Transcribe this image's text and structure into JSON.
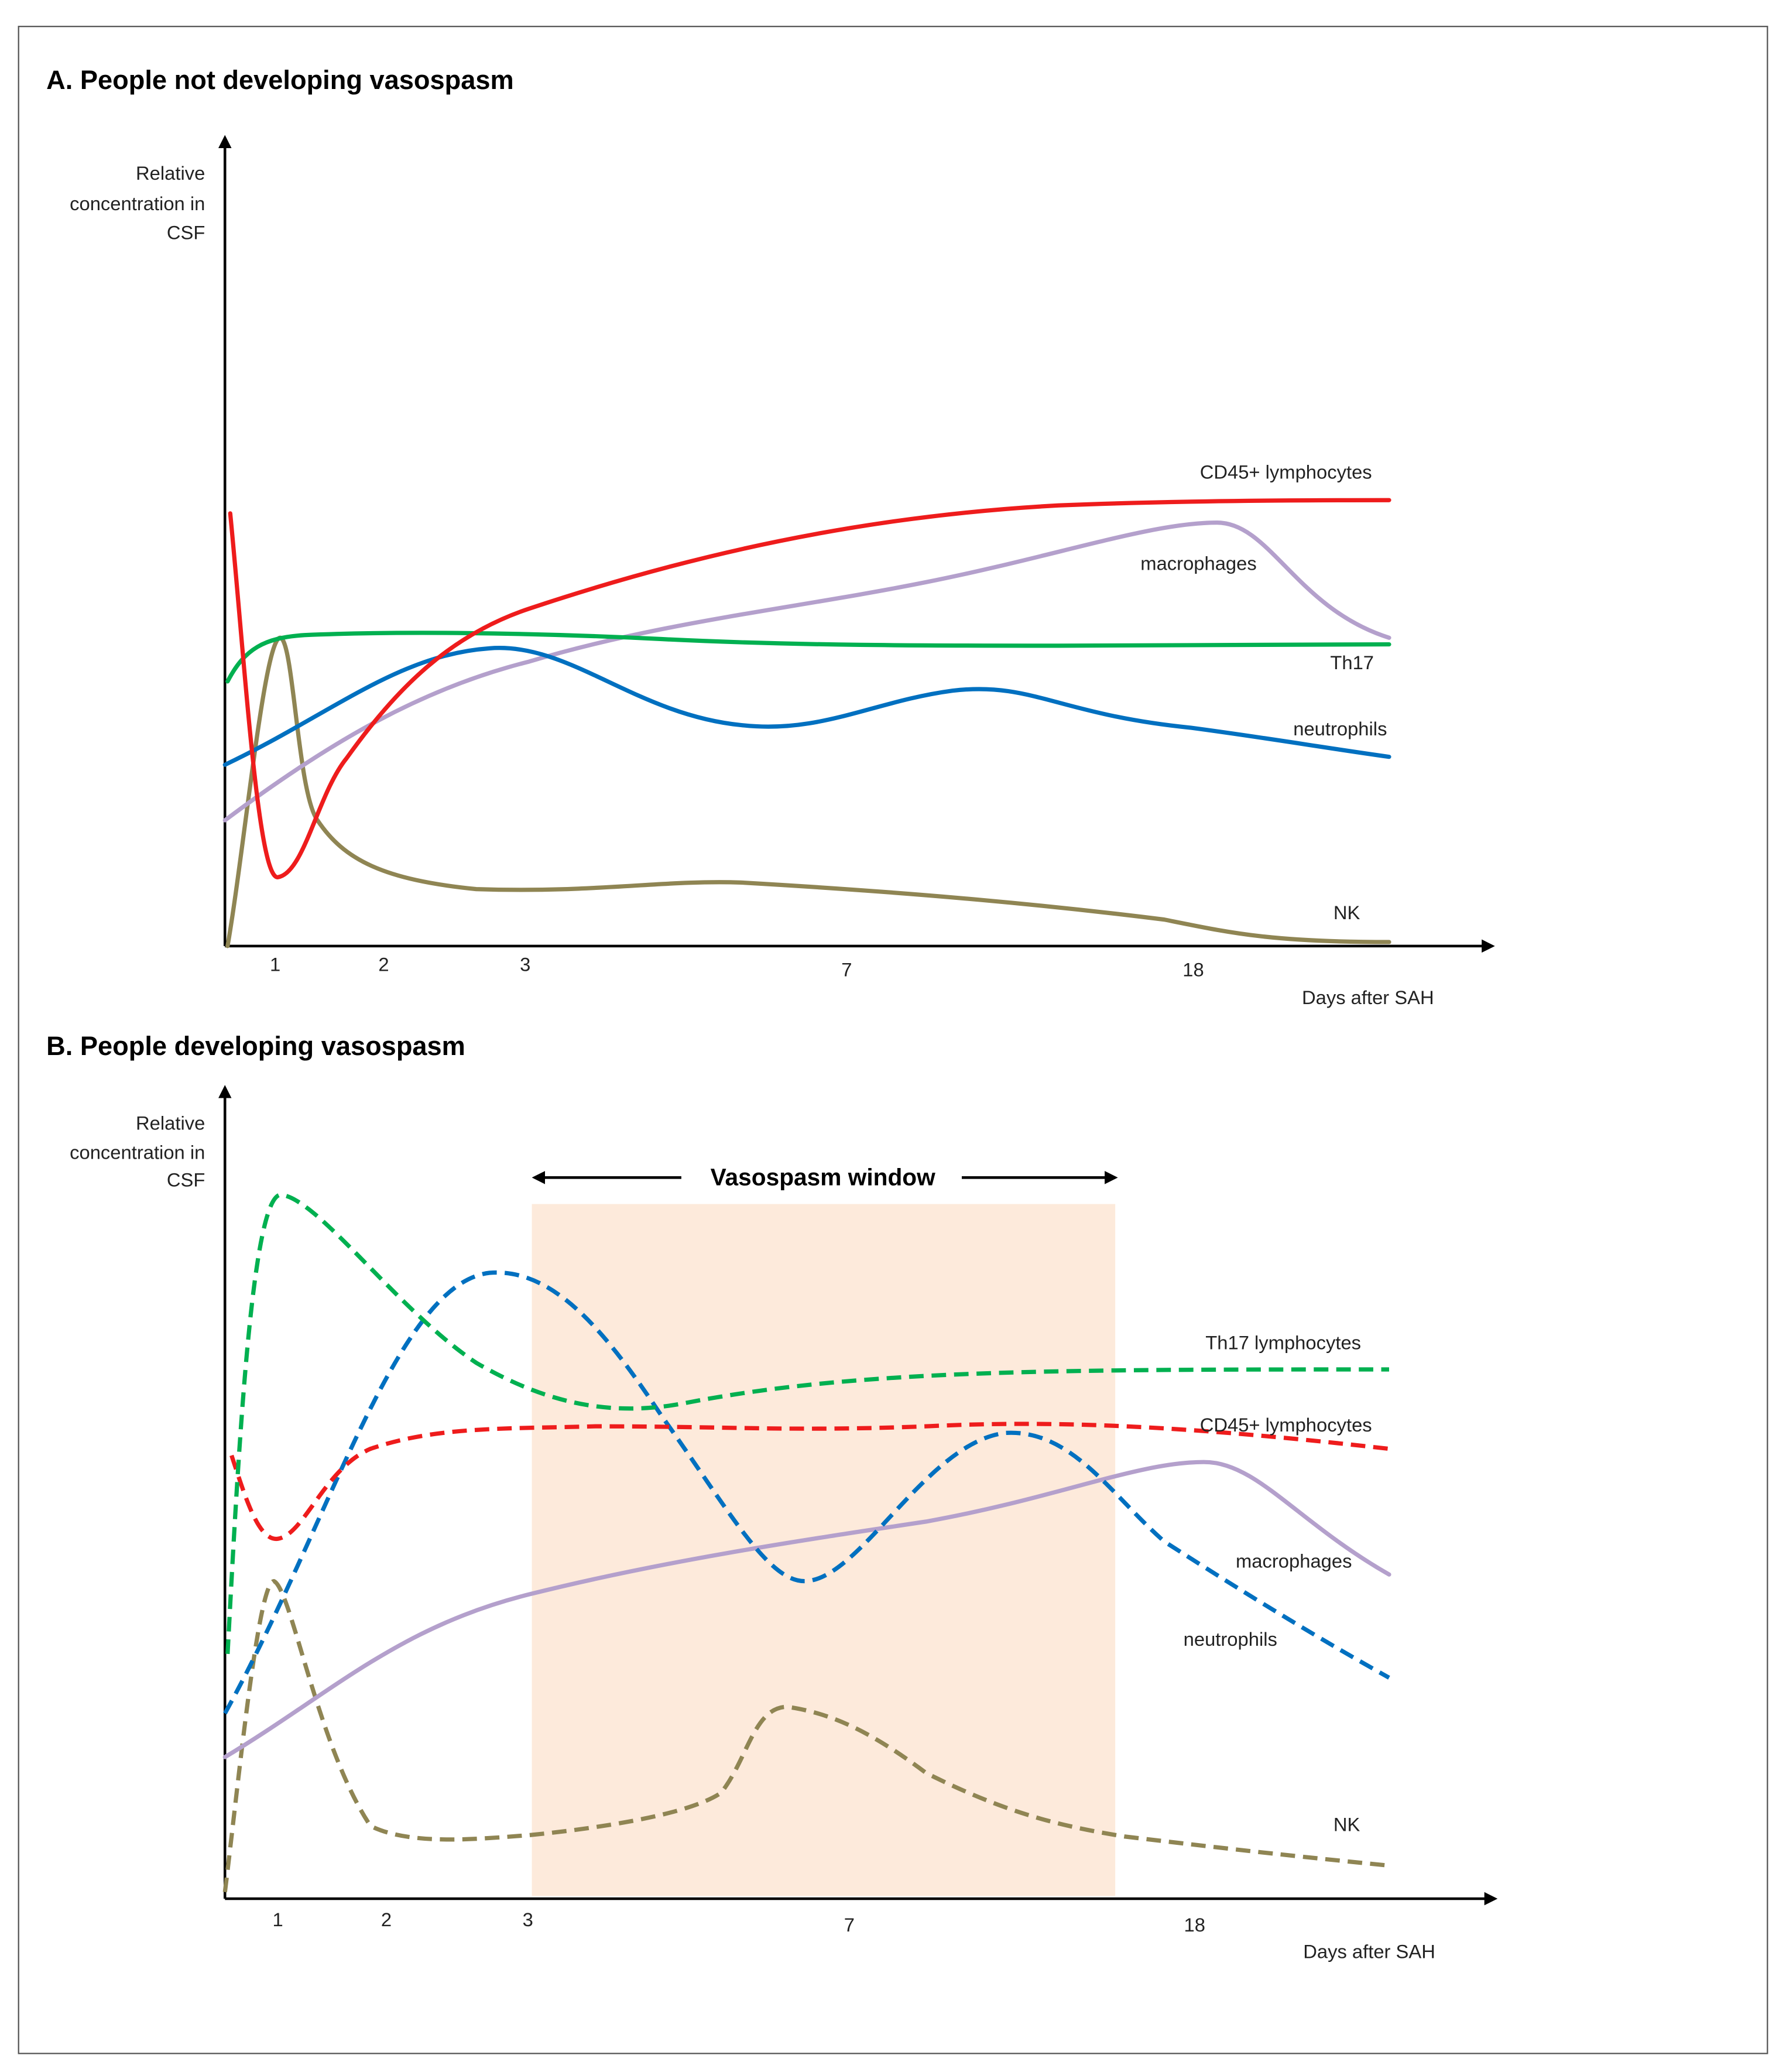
{
  "panels": [
    {
      "title": "A. People not developing vasospasm",
      "y_axis_label": [
        "Relative",
        "concentration in",
        "CSF"
      ],
      "x_axis_label": "Days after SAH",
      "x_ticks": [
        "1",
        "2",
        "3",
        "7",
        "18"
      ],
      "curve_labels": [
        "CD45+ lymphocytes",
        "macrophages",
        "Th17",
        "neutrophils",
        "NK"
      ]
    },
    {
      "title": "B. People developing vasospasm",
      "y_axis_label": [
        "Relative",
        "concentration in",
        "CSF"
      ],
      "x_axis_label": "Days after SAH",
      "x_ticks": [
        "1",
        "2",
        "3",
        "7",
        "18"
      ],
      "window_label": "Vasospasm window",
      "curve_labels": [
        "Th17 lymphocytes",
        "CD45+ lymphocytes",
        "macrophages",
        "neutrophils",
        "NK"
      ]
    }
  ]
}
